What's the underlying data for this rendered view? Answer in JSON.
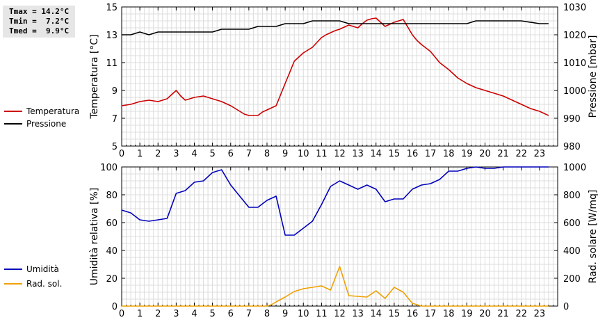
{
  "stats": {
    "tmax": "Tmax = 14.2°C",
    "tmin": "Tmin =  7.2°C",
    "tmed": "Tmed =  9.9°C"
  },
  "legend_top": [
    {
      "label": "Temperatura",
      "color": "#cc0000"
    },
    {
      "label": "Pressione",
      "color": "#000000"
    }
  ],
  "legend_bottom": [
    {
      "label": "Umidità",
      "color": "#0000bb"
    },
    {
      "label": "Rad. sol.",
      "color": "#f0a000"
    }
  ],
  "chart_data": [
    {
      "type": "line",
      "ylabel": "Temperatura [°C]",
      "y2label": "Pressione [mbar]",
      "xlim": [
        0,
        24
      ],
      "ylim": [
        5,
        15
      ],
      "y2lim": [
        980,
        1030
      ],
      "x_ticks": [
        0,
        1,
        2,
        3,
        4,
        5,
        6,
        7,
        8,
        9,
        10,
        11,
        12,
        13,
        14,
        15,
        16,
        17,
        18,
        19,
        20,
        21,
        22,
        23
      ],
      "y_ticks": [
        5,
        7,
        9,
        11,
        13,
        15
      ],
      "y2_ticks": [
        980,
        990,
        1000,
        1010,
        1020,
        1030
      ],
      "grid": true,
      "series": [
        {
          "name": "Temperatura",
          "color": "#cc0000",
          "axis": "left",
          "x": [
            0,
            0.25,
            0.5,
            0.75,
            1,
            1.25,
            1.5,
            1.75,
            2,
            2.25,
            2.5,
            2.75,
            3,
            3.25,
            3.5,
            3.75,
            4,
            4.25,
            4.5,
            4.75,
            5,
            5.25,
            5.5,
            5.75,
            6,
            6.25,
            6.5,
            6.75,
            7,
            7.25,
            7.5,
            7.75,
            8,
            8.25,
            8.5,
            8.75,
            9,
            9.25,
            9.5,
            9.75,
            10,
            10.25,
            10.5,
            10.75,
            11,
            11.25,
            11.5,
            11.75,
            12,
            12.25,
            12.5,
            12.75,
            13,
            13.25,
            13.5,
            13.75,
            14,
            14.25,
            14.5,
            14.75,
            15,
            15.25,
            15.5,
            15.75,
            16,
            16.25,
            16.5,
            16.75,
            17,
            17.25,
            17.5,
            17.75,
            18,
            18.25,
            18.5,
            18.75,
            19,
            19.25,
            19.5,
            19.75,
            20,
            20.25,
            20.5,
            20.75,
            21,
            21.25,
            21.5,
            21.75,
            22,
            22.25,
            22.5,
            22.75,
            23,
            23.25,
            23.5
          ],
          "y": [
            7.9,
            7.95,
            8.0,
            8.1,
            8.2,
            8.25,
            8.3,
            8.25,
            8.2,
            8.3,
            8.4,
            8.7,
            9.0,
            8.6,
            8.3,
            8.4,
            8.5,
            8.55,
            8.6,
            8.5,
            8.4,
            8.3,
            8.2,
            8.05,
            7.9,
            7.7,
            7.5,
            7.3,
            7.2,
            7.2,
            7.2,
            7.45,
            7.6,
            7.75,
            7.9,
            8.7,
            9.5,
            10.3,
            11.1,
            11.4,
            11.7,
            11.9,
            12.1,
            12.45,
            12.8,
            13.0,
            13.15,
            13.3,
            13.4,
            13.55,
            13.7,
            13.6,
            13.5,
            13.8,
            14.05,
            14.15,
            14.2,
            13.9,
            13.6,
            13.75,
            13.9,
            14.0,
            14.1,
            13.55,
            13.0,
            12.6,
            12.3,
            12.05,
            11.8,
            11.4,
            11.0,
            10.75,
            10.5,
            10.2,
            9.9,
            9.7,
            9.5,
            9.35,
            9.2,
            9.1,
            9.0,
            8.9,
            8.8,
            8.7,
            8.6,
            8.45,
            8.3,
            8.15,
            8.0,
            7.85,
            7.7,
            7.6,
            7.5,
            7.35,
            7.2
          ]
        },
        {
          "name": "Pressione",
          "color": "#000000",
          "axis": "right",
          "x": [
            0,
            0.5,
            1,
            1.5,
            2,
            3,
            4,
            5,
            5.5,
            6,
            7,
            7.5,
            8,
            8.5,
            9,
            10,
            10.5,
            11,
            12,
            12.5,
            13,
            14,
            15,
            16,
            17,
            18,
            19,
            19.5,
            20,
            21,
            22,
            23,
            23.5
          ],
          "y": [
            1020,
            1020,
            1021,
            1020,
            1021,
            1021,
            1021,
            1021,
            1022,
            1022,
            1022,
            1023,
            1023,
            1023,
            1024,
            1024,
            1025,
            1025,
            1025,
            1024,
            1024,
            1024,
            1024,
            1024,
            1024,
            1024,
            1024,
            1025,
            1025,
            1025,
            1025,
            1024,
            1024
          ]
        }
      ]
    },
    {
      "type": "line",
      "ylabel": "Umidità relativa [%]",
      "y2label": "Rad. solare [W/mq]",
      "xlim": [
        0,
        24
      ],
      "ylim": [
        0,
        100
      ],
      "y2lim": [
        0,
        1000
      ],
      "x_ticks": [
        0,
        1,
        2,
        3,
        4,
        5,
        6,
        7,
        8,
        9,
        10,
        11,
        12,
        13,
        14,
        15,
        16,
        17,
        18,
        19,
        20,
        21,
        22,
        23
      ],
      "y_ticks": [
        0,
        20,
        40,
        60,
        80,
        100
      ],
      "y2_ticks": [
        0,
        200,
        400,
        600,
        800,
        1000
      ],
      "grid": true,
      "series": [
        {
          "name": "Umidità",
          "color": "#0000bb",
          "axis": "left",
          "x": [
            0,
            0.5,
            1,
            1.5,
            2,
            2.5,
            3,
            3.5,
            4,
            4.5,
            5,
            5.5,
            6,
            6.5,
            7,
            7.5,
            8,
            8.5,
            9,
            9.5,
            10,
            10.5,
            11,
            11.5,
            12,
            12.5,
            13,
            13.5,
            14,
            14.5,
            15,
            15.5,
            16,
            16.5,
            17,
            17.5,
            18,
            18.5,
            19,
            19.5,
            20,
            20.5,
            21,
            21.5,
            22,
            22.5,
            23,
            23.5
          ],
          "y": [
            69,
            67,
            62,
            61,
            62,
            63,
            81,
            83,
            89,
            90,
            96,
            98,
            87,
            79,
            71,
            71,
            76,
            79,
            51,
            51,
            56,
            61,
            73,
            86,
            90,
            87,
            84,
            87,
            84,
            75,
            77,
            77,
            84,
            87,
            88,
            91,
            97,
            97,
            99,
            100,
            99,
            99,
            100,
            100,
            100,
            100,
            100,
            100
          ]
        },
        {
          "name": "Rad. sol.",
          "color": "#f0a000",
          "axis": "right",
          "x": [
            0,
            1,
            2,
            3,
            4,
            5,
            6,
            7,
            7.5,
            8,
            8.25,
            8.5,
            9,
            9.5,
            10,
            10.5,
            11,
            11.5,
            12,
            12.5,
            13,
            13.5,
            14,
            14.5,
            15,
            15.5,
            16,
            16.5,
            17,
            18,
            19,
            20,
            21,
            22,
            23,
            23.5
          ],
          "y": [
            0,
            0,
            0,
            0,
            0,
            0,
            0,
            0,
            0,
            0,
            10,
            30,
            65,
            105,
            125,
            135,
            145,
            115,
            285,
            75,
            70,
            65,
            110,
            55,
            135,
            100,
            20,
            0,
            0,
            0,
            0,
            0,
            0,
            0,
            0,
            0
          ]
        }
      ]
    }
  ]
}
